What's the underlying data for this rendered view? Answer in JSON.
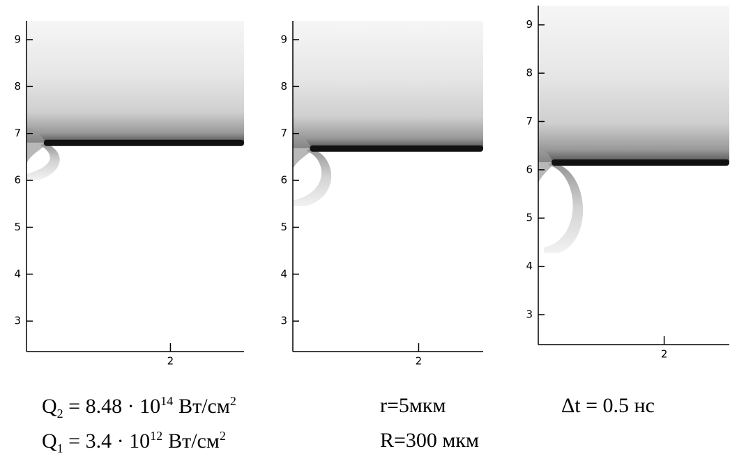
{
  "chart_data": [
    {
      "type": "contour",
      "ylim": [
        2.35,
        9.4
      ],
      "yticks": [
        3,
        4,
        5,
        6,
        7,
        8,
        9
      ],
      "xlim": [
        0.67,
        2.68
      ],
      "xticks": [
        2
      ]
    },
    {
      "type": "contour",
      "ylim": [
        2.35,
        9.4
      ],
      "yticks": [
        3,
        4,
        5,
        6,
        7,
        8,
        9
      ],
      "xlim": [
        0.83,
        2.6
      ],
      "xticks": [
        2
      ]
    },
    {
      "type": "contour",
      "ylim": [
        2.38,
        9.4
      ],
      "yticks": [
        3,
        4,
        5,
        6,
        7,
        8,
        9
      ],
      "xlim": [
        0.84,
        2.6
      ],
      "xticks": [
        2
      ]
    }
  ],
  "captions": {
    "q2": {
      "symbol": "Q",
      "sub": "2",
      "text": "= 8.48 · 10",
      "exp": "14",
      "unit": "Вт/см",
      "unit_exp": "2"
    },
    "q1": {
      "symbol": "Q",
      "sub": "1",
      "text": "= 3.4 · 10",
      "exp": "12",
      "unit": "Вт/см",
      "unit_exp": "2"
    },
    "r_small": "r=5мкм",
    "r_big": "R=300 мкм",
    "dt": "Δt = 0.5 нс"
  }
}
